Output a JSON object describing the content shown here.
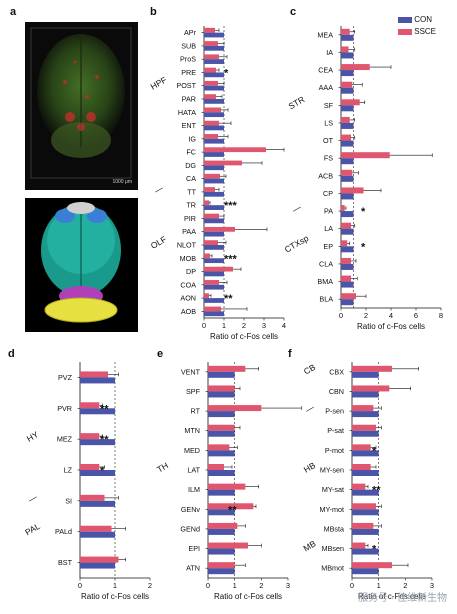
{
  "panel_labels": {
    "a": "a",
    "b": "b",
    "c": "c",
    "d": "d",
    "e": "e",
    "f": "f"
  },
  "panel_a": {
    "scale_text": "1000 μm"
  },
  "legend": {
    "con": "CON",
    "ssce": "SSCE"
  },
  "colors": {
    "con": "#4b55a8",
    "ssce": "#e0566e"
  },
  "watermark": "服务号 · 佳维新生物",
  "chart_data": [
    {
      "id": "b",
      "type": "bar",
      "orientation": "horizontal",
      "xlabel": "Ratio of c-Fos cells",
      "xlim": [
        0,
        4
      ],
      "xticks": [
        0,
        1,
        2,
        3,
        4
      ],
      "ref_line": 1,
      "categories": [
        "APr",
        "SUB",
        "ProS",
        "PRE",
        "POST",
        "PAR",
        "HATA",
        "ENT",
        "IG",
        "FC",
        "DG",
        "CA",
        "TT",
        "TR",
        "PIR",
        "PAA",
        "NLOT",
        "MOB",
        "DP",
        "COA",
        "AON",
        "AOB"
      ],
      "series": [
        {
          "name": "CON",
          "values": [
            1,
            1,
            1,
            1,
            1,
            1,
            1,
            1,
            1,
            1,
            1,
            1,
            1,
            1,
            1,
            1,
            1,
            1,
            1,
            1,
            1,
            1
          ]
        },
        {
          "name": "SSCE",
          "values": [
            0.55,
            0.7,
            0.75,
            0.6,
            0.7,
            0.6,
            0.85,
            0.75,
            0.7,
            3.1,
            1.9,
            0.8,
            0.55,
            0.25,
            0.75,
            1.55,
            0.7,
            0.3,
            1.45,
            0.75,
            0.25,
            0.85
          ]
        }
      ],
      "errors": [
        0.2,
        0.3,
        0.4,
        0.15,
        0.3,
        0.3,
        0.35,
        0.6,
        0.5,
        0.9,
        1.0,
        0.3,
        0.2,
        0.05,
        0.25,
        1.6,
        0.4,
        0.1,
        0.4,
        0.4,
        0.1,
        1.3
      ],
      "sig": {
        "PRE": "*",
        "TR": "***",
        "MOB": "***",
        "AON": "**"
      },
      "groups": [
        {
          "label": "HPF",
          "at": "POST"
        },
        {
          "label": "—",
          "at": "TT"
        },
        {
          "label": "OLF",
          "at": "NLOT"
        }
      ]
    },
    {
      "id": "c",
      "type": "bar",
      "orientation": "horizontal",
      "xlabel": "Ratio of c-Fos cells",
      "xlim": [
        0,
        8
      ],
      "xticks": [
        0,
        2,
        4,
        6,
        8
      ],
      "ref_line": 1,
      "categories": [
        "MEA",
        "IA",
        "CEA",
        "AAA",
        "SF",
        "LS",
        "OT",
        "FS",
        "ACB",
        "CP",
        "PA",
        "LA",
        "EP",
        "CLA",
        "BMA",
        "BLA"
      ],
      "series": [
        {
          "name": "CON",
          "values": [
            1,
            1,
            1,
            1,
            1,
            1,
            1,
            1,
            1,
            1,
            1,
            1,
            1,
            1,
            1,
            1
          ]
        },
        {
          "name": "SSCE",
          "values": [
            0.7,
            0.6,
            2.3,
            0.9,
            1.5,
            0.7,
            0.8,
            3.9,
            0.9,
            1.8,
            0.3,
            0.8,
            0.5,
            0.8,
            0.8,
            1.2
          ]
        }
      ],
      "errors": [
        0.4,
        0.5,
        1.7,
        0.8,
        0.4,
        0.4,
        0.3,
        3.4,
        0.5,
        1.4,
        0.1,
        0.3,
        0.2,
        0.4,
        0.5,
        0.8
      ],
      "sig": {
        "PA": "*",
        "EP": "*"
      },
      "groups": [
        {
          "label": "STR",
          "at": "SF"
        },
        {
          "label": "—",
          "at": "PA"
        },
        {
          "label": "CTXsp",
          "at": "EP"
        }
      ]
    },
    {
      "id": "d",
      "type": "bar",
      "orientation": "horizontal",
      "xlabel": "Ratio of c-Fos cells",
      "xlim": [
        0,
        2
      ],
      "xticks": [
        0,
        1,
        2
      ],
      "ref_line": 1,
      "categories": [
        "PVZ",
        "PVR",
        "MEZ",
        "LZ",
        "SI",
        "PALd",
        "BST"
      ],
      "series": [
        {
          "name": "CON",
          "values": [
            1,
            1,
            1,
            1,
            1,
            1,
            1
          ]
        },
        {
          "name": "SSCE",
          "values": [
            0.8,
            0.55,
            0.55,
            0.55,
            0.7,
            0.9,
            1.1
          ]
        }
      ],
      "errors": [
        0.3,
        0.1,
        0.1,
        0.15,
        0.4,
        0.4,
        0.2
      ],
      "sig": {
        "PVR": "**",
        "MEZ": "**",
        "LZ": "*"
      },
      "groups": [
        {
          "label": "HY",
          "at": "MEZ"
        },
        {
          "label": "—",
          "at": "SI"
        },
        {
          "label": "PAL",
          "at": "PALd"
        }
      ]
    },
    {
      "id": "e",
      "type": "bar",
      "orientation": "horizontal",
      "xlabel": "Ratio of c-Fos cells",
      "xlim": [
        0,
        3
      ],
      "xticks": [
        0,
        1,
        2,
        3
      ],
      "ref_line": 1,
      "categories": [
        "VENT",
        "SPF",
        "RT",
        "MTN",
        "MED",
        "LAT",
        "ILM",
        "GENv",
        "GENd",
        "EPI",
        "ATN"
      ],
      "series": [
        {
          "name": "CON",
          "values": [
            1,
            1,
            1,
            1,
            1,
            1,
            1,
            1,
            1,
            1,
            1
          ]
        },
        {
          "name": "SSCE",
          "values": [
            1.4,
            1.0,
            2.0,
            1.0,
            0.8,
            0.6,
            1.4,
            1.7,
            1.1,
            1.5,
            1.0
          ]
        }
      ],
      "errors": [
        0.5,
        0.2,
        1.5,
        0.2,
        0.3,
        0.3,
        0.5,
        0.1,
        0.3,
        0.5,
        0.4
      ],
      "sig": {
        "GENv": "**"
      },
      "groups": [
        {
          "label": "TH",
          "at": "LAT"
        }
      ]
    },
    {
      "id": "f",
      "type": "bar",
      "orientation": "horizontal",
      "xlabel": "Ratio of c-Fos cells",
      "xlim": [
        0,
        3
      ],
      "xticks": [
        0,
        1,
        2,
        3
      ],
      "ref_line": 1,
      "categories": [
        "CBX",
        "CBN",
        "P-sen",
        "P-sat",
        "P-mot",
        "MY-sen",
        "MY-sat",
        "MY-mot",
        "MBsta",
        "MBsen",
        "MBmot"
      ],
      "series": [
        {
          "name": "CON",
          "values": [
            1,
            1,
            1,
            1,
            1,
            1,
            1,
            1,
            1,
            1,
            1
          ]
        },
        {
          "name": "SSCE",
          "values": [
            1.5,
            1.4,
            0.8,
            0.9,
            0.7,
            0.7,
            0.5,
            0.9,
            0.8,
            0.5,
            1.5
          ]
        }
      ],
      "errors": [
        1.0,
        0.8,
        0.3,
        0.2,
        0.2,
        0.2,
        0.1,
        0.2,
        0.3,
        0.1,
        0.6
      ],
      "sig": {
        "P-mot": "*",
        "MY-sat": "**",
        "MBsen": "*"
      },
      "groups": [
        {
          "label": "CB",
          "at": "CBX"
        },
        {
          "label": "—",
          "at": "P-sen"
        },
        {
          "label": "HB",
          "at": "MY-sen"
        },
        {
          "label": "MB",
          "at": "MBsen"
        }
      ]
    }
  ]
}
